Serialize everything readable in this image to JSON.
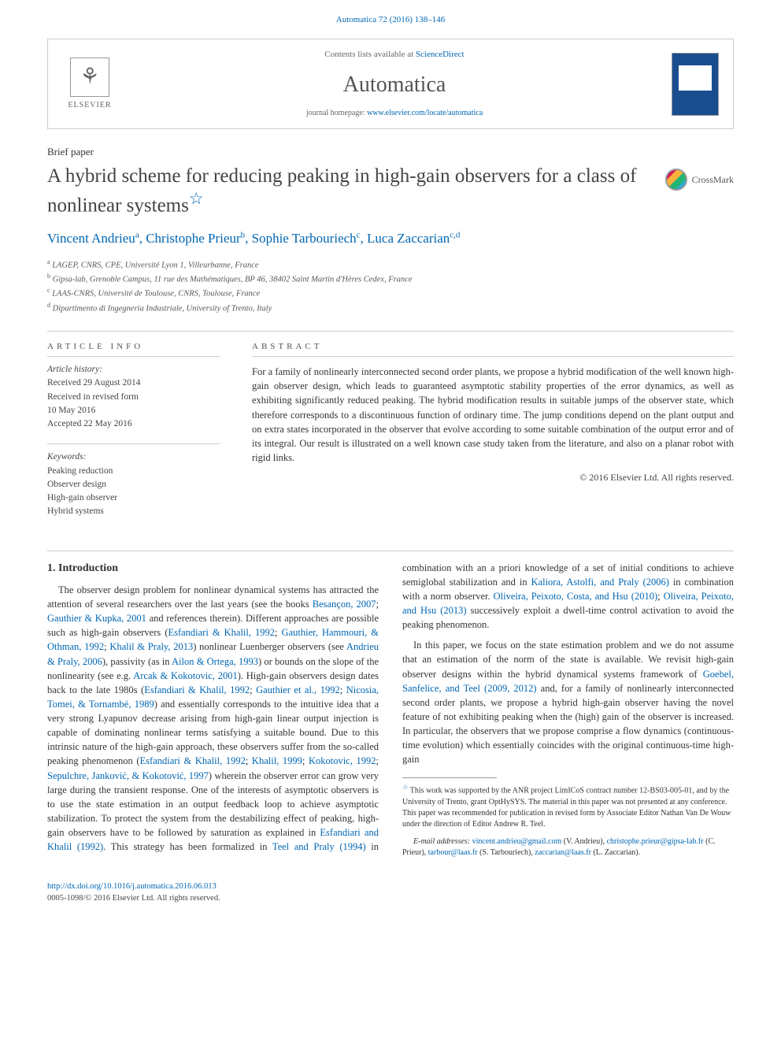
{
  "header": {
    "citation": "Automatica 72 (2016) 138–146",
    "citation_link_text": "Automatica 72 (2016) 138–146"
  },
  "journal_box": {
    "publisher": "ELSEVIER",
    "contents_prefix": "Contents lists available at ",
    "contents_link": "ScienceDirect",
    "journal_name": "Automatica",
    "homepage_prefix": "journal homepage: ",
    "homepage_link": "www.elsevier.com/locate/automatica"
  },
  "paper": {
    "type": "Brief paper",
    "title": "A hybrid scheme for reducing peaking in high-gain observers for a class of nonlinear systems",
    "crossmark": "CrossMark",
    "authors_html": "Vincent Andrieu<sup>a</sup>, Christophe Prieur<sup>b</sup>, Sophie Tarbouriech<sup>c</sup>, Luca Zaccarian<sup>c,d</sup>",
    "affiliations": [
      {
        "sup": "a",
        "text": "LAGEP, CNRS, CPE, Université Lyon 1, Villeurbanne, France"
      },
      {
        "sup": "b",
        "text": "Gipsa-lab, Grenoble Campus, 11 rue des Mathématiques, BP 46, 38402 Saint Martin d'Hères Cedex, France"
      },
      {
        "sup": "c",
        "text": "LAAS-CNRS, Université de Toulouse, CNRS, Toulouse, France"
      },
      {
        "sup": "d",
        "text": "Dipartimento di Ingegneria Industriale, University of Trento, Italy"
      }
    ]
  },
  "article_info": {
    "label": "ARTICLE INFO",
    "history_label": "Article history:",
    "received": "Received 29 August 2014",
    "revised": "Received in revised form",
    "revised_date": "10 May 2016",
    "accepted": "Accepted 22 May 2016",
    "keywords_label": "Keywords:",
    "keywords": [
      "Peaking reduction",
      "Observer design",
      "High-gain observer",
      "Hybrid systems"
    ]
  },
  "abstract": {
    "label": "ABSTRACT",
    "text": "For a family of nonlinearly interconnected second order plants, we propose a hybrid modification of the well known high-gain observer design, which leads to guaranteed asymptotic stability properties of the error dynamics, as well as exhibiting significantly reduced peaking. The hybrid modification results in suitable jumps of the observer state, which therefore corresponds to a discontinuous function of ordinary time. The jump conditions depend on the plant output and on extra states incorporated in the observer that evolve according to some suitable combination of the output error and of its integral. Our result is illustrated on a well known case study taken from the literature, and also on a planar robot with rigid links.",
    "copyright": "© 2016 Elsevier Ltd. All rights reserved."
  },
  "body": {
    "section_title": "1. Introduction",
    "para1_pre": "The observer design problem for nonlinear dynamical systems has attracted the attention of several researchers over the last years (see the books ",
    "ref_besancon": "Besançon, 2007",
    "sep1": "; ",
    "ref_gauthier2001": "Gauthier & Kupka, 2001",
    "para1_mid1": " and references therein). Different approaches are possible such as high-gain observers (",
    "ref_esfandiari": "Esfandiari & Khalil, 1992",
    "ref_gauthier1992": "Gauthier, Hammouri, & Othman, 1992",
    "ref_khalil2013": "Khalil & Praly, 2013",
    "para1_mid2": ") nonlinear Luenberger observers (see ",
    "ref_andrieu": "Andrieu & Praly, 2006",
    "para1_mid3": "), passivity (as in ",
    "ref_ailon": "Ailon & Ortega, 1993",
    "para1_mid4": ") or bounds on the slope of the nonlinearity (see e.g. ",
    "ref_arcak": "Arcak & Kokotovic, 2001",
    "para1_mid5": "). High-gain observers design dates back to the late 1980s (",
    "ref_gauthier_etal": "Gauthier et al., 1992",
    "ref_nicosia": "Nicosia, Tomei, & Tornambé, 1989",
    "para1_end": ") and essentially corresponds to the intuitive idea that a very strong Lyapunov decrease arising from high-gain linear output injection is capable of dominating nonlinear terms satisfying a suitable bound. Due to this intrinsic",
    "para2_pre": "nature of the high-gain approach, these observers suffer from the so-called peaking phenomenon (",
    "ref_khalil1999": "Khalil, 1999",
    "ref_kokotovic": "Kokotovic, 1992",
    "ref_sepulchre": "Sepulchre, Janković, & Kokotović, 1997",
    "para2_mid1": ") wherein the observer error can grow very large during the transient response. One of the interests of asymptotic observers is to use the state estimation in an output feedback loop to achieve asymptotic stabilization. To protect the system from the destabilizing effect of peaking, high-gain observers have to be followed by saturation as explained in ",
    "ref_esf_khalil": "Esfandiari and Khalil (1992)",
    "para2_mid2": ". This strategy has been formalized in ",
    "ref_teel": "Teel and Praly (1994)",
    "para2_mid3": " in combination with an a priori knowledge of a set of initial conditions to achieve semiglobal stabilization and in ",
    "ref_kaliora": "Kaliora, Astolfi, and Praly (2006)",
    "para2_mid4": " in combination with a norm observer. ",
    "ref_oliveira2010": "Oliveira, Peixoto, Costa, and Hsu (2010)",
    "ref_oliveira2013": "Oliveira, Peixoto, and Hsu (2013)",
    "para2_end": " successively exploit a dwell-time control activation to avoid the peaking phenomenon.",
    "para3_pre": "In this paper, we focus on the state estimation problem and we do not assume that an estimation of the norm of the state is available. We revisit high-gain observer designs within the hybrid dynamical systems framework of ",
    "ref_goebel": "Goebel, Sanfelice, and Teel (2009, 2012)",
    "para3_end": " and, for a family of nonlinearly interconnected second order plants, we propose a hybrid high-gain observer having the novel feature of not exhibiting peaking when the (high) gain of the observer is increased. In particular, the observers that we propose comprise a flow dynamics (continuous-time evolution) which essentially coincides with the original continuous-time high-gain"
  },
  "footnote": {
    "star_text": "This work was supported by the ANR project LimICoS contract number 12-BS03-005-01, and by the University of Trento, grant OptHySYS. The material in this paper was not presented at any conference. This paper was recommended for publication in revised form by Associate Editor Nathan Van De Wouw under the direction of Editor Andrew R. Teel.",
    "email_label": "E-mail addresses:",
    "emails": [
      {
        "addr": "vincent.andrieu@gmail.com",
        "who": "(V. Andrieu)"
      },
      {
        "addr": "christophe.prieur@gipsa-lab.fr",
        "who": "(C. Prieur)"
      },
      {
        "addr": "tarbour@laas.fr",
        "who": "(S. Tarbouriech)"
      },
      {
        "addr": "zaccarian@laas.fr",
        "who": "(L. Zaccarian)"
      }
    ]
  },
  "doi": {
    "link": "http://dx.doi.org/10.1016/j.automatica.2016.06.013",
    "issn": "0005-1098/© 2016 Elsevier Ltd. All rights reserved."
  },
  "colors": {
    "link": "#0066b3",
    "text": "#333333",
    "border": "#cccccc",
    "muted": "#666666"
  }
}
